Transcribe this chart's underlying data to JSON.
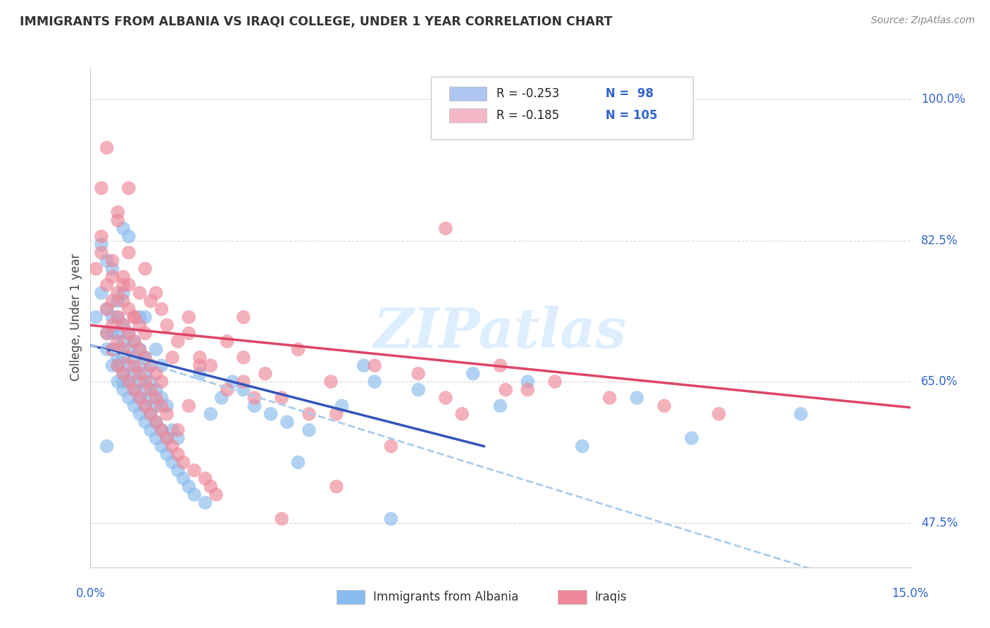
{
  "title": "IMMIGRANTS FROM ALBANIA VS IRAQI COLLEGE, UNDER 1 YEAR CORRELATION CHART",
  "source_text": "Source: ZipAtlas.com",
  "ylabel": "College, Under 1 year",
  "ylabel_ticks": [
    "47.5%",
    "65.0%",
    "82.5%",
    "100.0%"
  ],
  "ylabel_tick_vals": [
    0.475,
    0.65,
    0.825,
    1.0
  ],
  "legend_entries": [
    {
      "r_text": "R = -0.253",
      "n_text": "N =  98",
      "color": "#aec6f0"
    },
    {
      "r_text": "R = -0.185",
      "n_text": "N = 105",
      "color": "#f5b8c8"
    }
  ],
  "legend_labels": [
    "Immigrants from Albania",
    "Iraqis"
  ],
  "albania_color": "#88bbee",
  "iraqis_color": "#ee8899",
  "albania_line_color": "#3355bb",
  "iraqis_line_color": "#dd4466",
  "dashed_line_color": "#aaccee",
  "watermark_text": "ZIPatlas",
  "watermark_color": "#ddeeff",
  "background_color": "#ffffff",
  "grid_color": "#cccccc",
  "xlim": [
    0.0,
    0.15
  ],
  "ylim": [
    0.42,
    1.04
  ],
  "tick_color": "#3366cc",
  "albania_scatter_x": [
    0.001,
    0.002,
    0.002,
    0.003,
    0.003,
    0.003,
    0.003,
    0.004,
    0.004,
    0.004,
    0.004,
    0.004,
    0.005,
    0.005,
    0.005,
    0.005,
    0.005,
    0.005,
    0.005,
    0.006,
    0.006,
    0.006,
    0.006,
    0.006,
    0.006,
    0.006,
    0.007,
    0.007,
    0.007,
    0.007,
    0.007,
    0.007,
    0.008,
    0.008,
    0.008,
    0.008,
    0.008,
    0.009,
    0.009,
    0.009,
    0.009,
    0.009,
    0.01,
    0.01,
    0.01,
    0.01,
    0.01,
    0.01,
    0.011,
    0.011,
    0.011,
    0.011,
    0.011,
    0.012,
    0.012,
    0.012,
    0.012,
    0.013,
    0.013,
    0.013,
    0.013,
    0.014,
    0.014,
    0.014,
    0.015,
    0.015,
    0.016,
    0.016,
    0.017,
    0.018,
    0.019,
    0.02,
    0.021,
    0.022,
    0.024,
    0.026,
    0.028,
    0.03,
    0.033,
    0.036,
    0.04,
    0.046,
    0.052,
    0.06,
    0.075,
    0.09,
    0.11,
    0.13,
    0.003,
    0.006,
    0.009,
    0.012,
    0.05,
    0.07,
    0.08,
    0.1,
    0.038,
    0.055
  ],
  "albania_scatter_y": [
    0.73,
    0.76,
    0.82,
    0.69,
    0.71,
    0.74,
    0.8,
    0.67,
    0.69,
    0.71,
    0.73,
    0.79,
    0.65,
    0.67,
    0.69,
    0.71,
    0.73,
    0.75,
    0.68,
    0.64,
    0.66,
    0.68,
    0.7,
    0.72,
    0.76,
    0.65,
    0.63,
    0.65,
    0.67,
    0.69,
    0.83,
    0.71,
    0.62,
    0.64,
    0.66,
    0.68,
    0.7,
    0.61,
    0.63,
    0.65,
    0.67,
    0.69,
    0.6,
    0.62,
    0.64,
    0.66,
    0.68,
    0.73,
    0.59,
    0.61,
    0.63,
    0.65,
    0.67,
    0.58,
    0.6,
    0.62,
    0.64,
    0.57,
    0.59,
    0.63,
    0.67,
    0.56,
    0.58,
    0.62,
    0.55,
    0.59,
    0.54,
    0.58,
    0.53,
    0.52,
    0.51,
    0.66,
    0.5,
    0.61,
    0.63,
    0.65,
    0.64,
    0.62,
    0.61,
    0.6,
    0.59,
    0.62,
    0.65,
    0.64,
    0.62,
    0.57,
    0.58,
    0.61,
    0.57,
    0.84,
    0.73,
    0.69,
    0.67,
    0.66,
    0.65,
    0.63,
    0.55,
    0.48
  ],
  "iraqis_scatter_x": [
    0.001,
    0.002,
    0.002,
    0.003,
    0.003,
    0.003,
    0.003,
    0.004,
    0.004,
    0.004,
    0.004,
    0.005,
    0.005,
    0.005,
    0.005,
    0.005,
    0.006,
    0.006,
    0.006,
    0.006,
    0.006,
    0.007,
    0.007,
    0.007,
    0.007,
    0.007,
    0.007,
    0.008,
    0.008,
    0.008,
    0.008,
    0.009,
    0.009,
    0.009,
    0.009,
    0.01,
    0.01,
    0.01,
    0.01,
    0.011,
    0.011,
    0.011,
    0.012,
    0.012,
    0.012,
    0.013,
    0.013,
    0.013,
    0.014,
    0.014,
    0.015,
    0.016,
    0.016,
    0.017,
    0.018,
    0.019,
    0.02,
    0.021,
    0.022,
    0.023,
    0.025,
    0.028,
    0.032,
    0.038,
    0.044,
    0.052,
    0.06,
    0.068,
    0.076,
    0.002,
    0.004,
    0.006,
    0.008,
    0.01,
    0.012,
    0.014,
    0.016,
    0.018,
    0.02,
    0.025,
    0.03,
    0.04,
    0.005,
    0.007,
    0.009,
    0.011,
    0.013,
    0.015,
    0.022,
    0.028,
    0.035,
    0.045,
    0.055,
    0.065,
    0.075,
    0.085,
    0.095,
    0.105,
    0.115,
    0.065,
    0.08,
    0.045,
    0.028,
    0.018,
    0.035
  ],
  "iraqis_scatter_y": [
    0.79,
    0.81,
    0.89,
    0.71,
    0.74,
    0.77,
    0.94,
    0.69,
    0.72,
    0.75,
    0.78,
    0.67,
    0.7,
    0.73,
    0.86,
    0.76,
    0.66,
    0.69,
    0.72,
    0.75,
    0.78,
    0.65,
    0.68,
    0.71,
    0.74,
    0.77,
    0.81,
    0.64,
    0.67,
    0.7,
    0.73,
    0.63,
    0.66,
    0.69,
    0.72,
    0.62,
    0.65,
    0.68,
    0.71,
    0.61,
    0.64,
    0.67,
    0.6,
    0.63,
    0.66,
    0.59,
    0.62,
    0.65,
    0.58,
    0.61,
    0.57,
    0.56,
    0.59,
    0.55,
    0.62,
    0.54,
    0.68,
    0.53,
    0.52,
    0.51,
    0.7,
    0.73,
    0.66,
    0.69,
    0.65,
    0.67,
    0.66,
    0.61,
    0.64,
    0.83,
    0.8,
    0.77,
    0.73,
    0.79,
    0.76,
    0.72,
    0.7,
    0.73,
    0.67,
    0.64,
    0.63,
    0.61,
    0.85,
    0.89,
    0.76,
    0.75,
    0.74,
    0.68,
    0.67,
    0.65,
    0.63,
    0.61,
    0.57,
    0.63,
    0.67,
    0.65,
    0.63,
    0.62,
    0.61,
    0.84,
    0.64,
    0.52,
    0.68,
    0.71,
    0.48
  ],
  "albania_line_x": [
    0.0,
    0.072
  ],
  "albania_line_y": [
    0.695,
    0.57
  ],
  "iraqis_line_x": [
    0.0,
    0.15
  ],
  "iraqis_line_y": [
    0.72,
    0.618
  ],
  "dashed_line_x": [
    0.0,
    0.15
  ],
  "dashed_line_y": [
    0.695,
    0.38
  ]
}
